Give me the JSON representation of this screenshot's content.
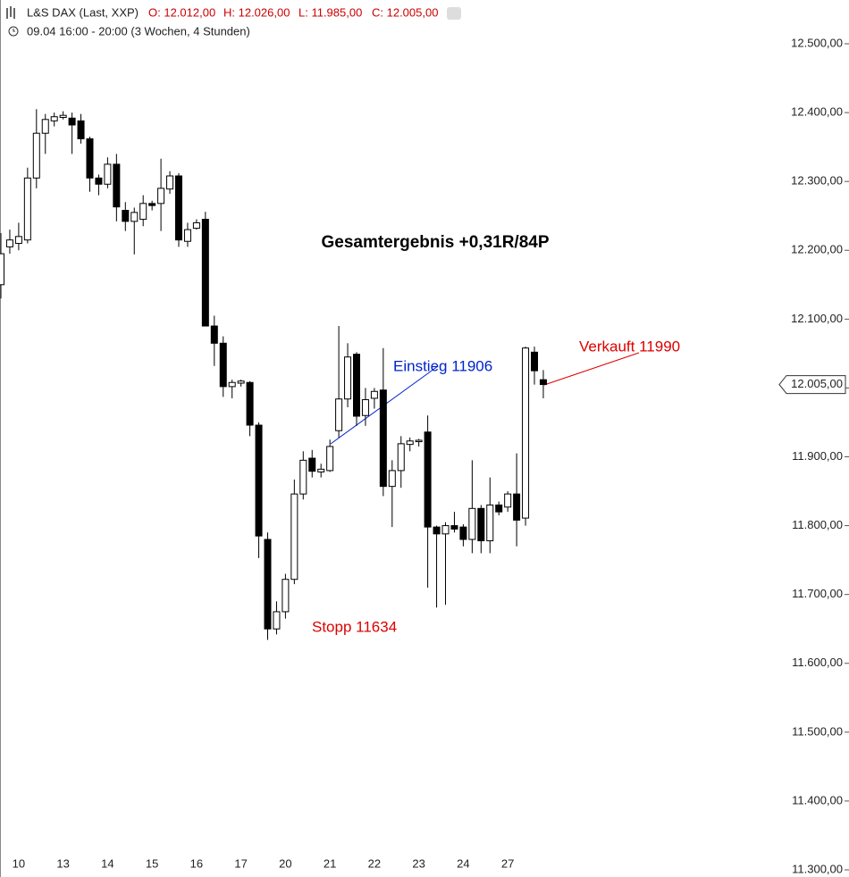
{
  "chart_data": {
    "type": "candlestick",
    "title": "L&S DAX (Last, XXP)",
    "ohlc_labels": [
      "O: 12.012,00",
      "H: 12.026,00",
      "L: 11.985,00",
      "C: 12.005,00"
    ],
    "subtitle": "09.04 16:00 - 20:00 (3 Wochen, 4 Stunden)",
    "categories": [
      null,
      null,
      "10",
      null,
      null,
      null,
      null,
      "13",
      null,
      null,
      null,
      null,
      "14",
      null,
      null,
      null,
      null,
      "15",
      null,
      null,
      null,
      null,
      "16",
      null,
      null,
      null,
      null,
      "17",
      null,
      null,
      null,
      null,
      "20",
      null,
      null,
      null,
      null,
      "21",
      null,
      null,
      null,
      null,
      "22",
      null,
      null,
      null,
      null,
      "23",
      null,
      null,
      null,
      null,
      "24",
      null,
      null,
      null,
      null,
      "27",
      null,
      null,
      null,
      null
    ],
    "open": [
      12150,
      12205,
      12210,
      12215,
      12305,
      12370,
      12388,
      12393,
      12392,
      12388,
      12362,
      12305,
      12296,
      12325,
      12258,
      12242,
      12245,
      12268,
      12268,
      12289,
      12308,
      12213,
      12232,
      12245,
      12090,
      12065,
      12002,
      12007,
      12008,
      11946,
      11780,
      11650,
      11675,
      11722,
      11846,
      11898,
      11878,
      11880,
      11938,
      11984,
      12049,
      11960,
      11985,
      11997,
      11857,
      11880,
      11918,
      11922,
      11936,
      11798,
      11788,
      11800,
      11798,
      11780,
      11825,
      11778,
      11830,
      11827,
      11846,
      11811,
      12052,
      12012
    ],
    "high": [
      12225,
      12230,
      12240,
      12320,
      12405,
      12398,
      12400,
      12402,
      12400,
      12398,
      12365,
      12310,
      12335,
      12340,
      12270,
      12262,
      12280,
      12272,
      12333,
      12315,
      12312,
      12240,
      12245,
      12256,
      12105,
      12075,
      12012,
      12012,
      12010,
      11950,
      11790,
      11690,
      11730,
      11867,
      11908,
      11910,
      11890,
      11925,
      12090,
      12065,
      12052,
      12000,
      12000,
      12058,
      11895,
      11930,
      11928,
      11926,
      11960,
      11800,
      11805,
      11820,
      11802,
      11895,
      11830,
      11870,
      11835,
      11850,
      11905,
      12060,
      12060,
      12026
    ],
    "low": [
      12130,
      12195,
      12200,
      12210,
      12290,
      12340,
      12380,
      12390,
      12340,
      12355,
      12285,
      12280,
      12290,
      12242,
      12228,
      12194,
      12235,
      12258,
      12228,
      12282,
      12205,
      12205,
      12230,
      12090,
      12032,
      11987,
      11985,
      12002,
      11930,
      11753,
      11634,
      11642,
      11665,
      11715,
      11838,
      11870,
      11870,
      11878,
      11928,
      11972,
      11945,
      11945,
      11970,
      11843,
      11798,
      11855,
      11908,
      11915,
      11710,
      11681,
      11685,
      11790,
      11770,
      11760,
      11760,
      11760,
      11815,
      11820,
      11770,
      11800,
      12005,
      11985
    ],
    "close": [
      12195,
      12215,
      12220,
      12305,
      12370,
      12390,
      12394,
      12396,
      12382,
      12362,
      12305,
      12296,
      12325,
      12263,
      12242,
      12255,
      12268,
      12265,
      12290,
      12308,
      12215,
      12230,
      12240,
      12090,
      12065,
      12002,
      12008,
      12010,
      11946,
      11785,
      11650,
      11675,
      11722,
      11846,
      11895,
      11879,
      11882,
      11915,
      11984,
      12045,
      11959,
      11983,
      11995,
      11857,
      11880,
      11919,
      11923,
      11924,
      11798,
      11788,
      11800,
      11795,
      11780,
      11825,
      11778,
      11830,
      11820,
      11846,
      11808,
      12058,
      12025,
      12005
    ],
    "up_color": "#ffffff",
    "down_color": "#000000",
    "ylim": [
      11300,
      12500
    ],
    "yticks": [
      {
        "value": 11300,
        "label": "11.300,00"
      },
      {
        "value": 11400,
        "label": "11.400,00"
      },
      {
        "value": 11500,
        "label": "11.500,00"
      },
      {
        "value": 11600,
        "label": "11.600,00"
      },
      {
        "value": 11700,
        "label": "11.700,00"
      },
      {
        "value": 11800,
        "label": "11.800,00"
      },
      {
        "value": 11900,
        "label": "11.900,00"
      },
      {
        "value": 12000,
        "label": "12.000,00"
      },
      {
        "value": 12100,
        "label": "12.100,00"
      },
      {
        "value": 12200,
        "label": "12.200,00"
      },
      {
        "value": 12300,
        "label": "12.300,00"
      },
      {
        "value": 12400,
        "label": "12.400,00"
      },
      {
        "value": 12500,
        "label": "12.500,00"
      }
    ],
    "last_price": {
      "value": 12005,
      "label": "12.005,00"
    },
    "annotations": [
      {
        "text": "Gesamtergebnis +0,31R/84P",
        "color": "#000000"
      },
      {
        "text": "Einstieg 11906",
        "color": "#0022cc"
      },
      {
        "text": "Verkauft 11990",
        "color": "#dd0000"
      },
      {
        "text": "Stopp 11634",
        "color": "#dd0000"
      }
    ]
  }
}
